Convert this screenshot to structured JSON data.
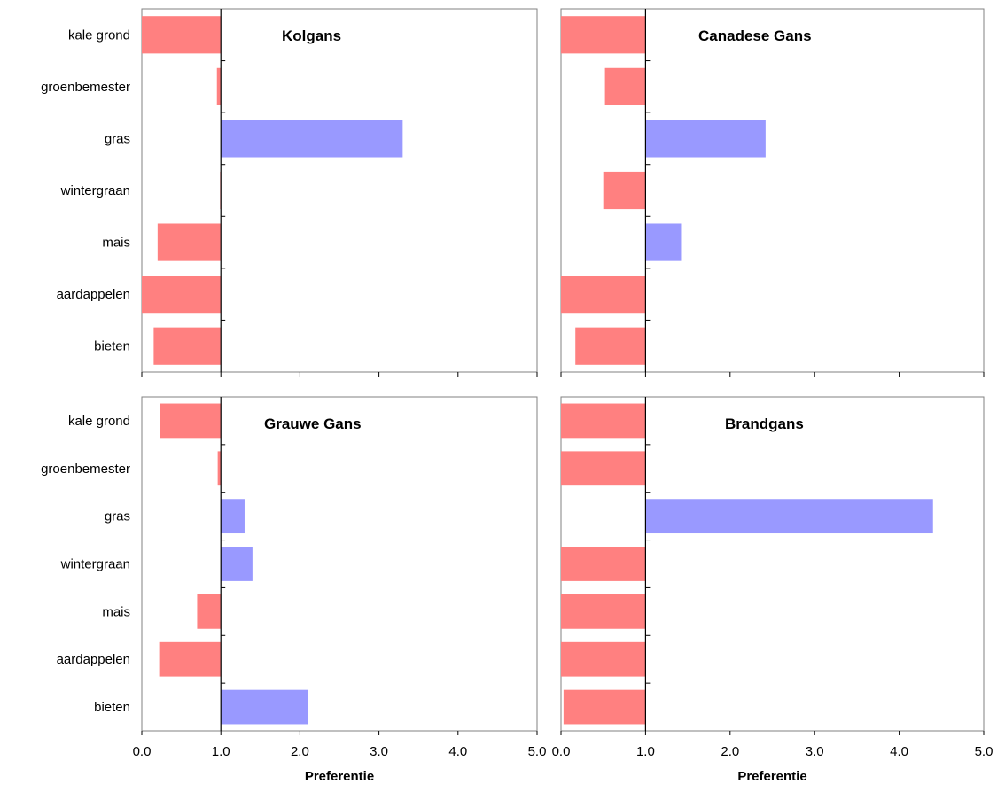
{
  "chart_data": [
    {
      "type": "bar",
      "orientation": "horizontal",
      "title": "Kolgans",
      "categories": [
        "kale grond",
        "groenbemester",
        "gras",
        "wintergraan",
        "mais",
        "aardappelen",
        "bieten"
      ],
      "values": [
        0.0,
        0.95,
        3.3,
        0.99,
        0.2,
        0.0,
        0.15
      ],
      "baseline": 1.0,
      "xlim": [
        0.0,
        5.0
      ],
      "xticks": [
        "0.0",
        "1.0",
        "2.0",
        "3.0",
        "4.0",
        "5.0"
      ],
      "xlabel": "",
      "colors": {
        "above": "#9999ff",
        "below": "#ff8080"
      }
    },
    {
      "type": "bar",
      "orientation": "horizontal",
      "title": "Canadese Gans",
      "categories": [
        "kale grond",
        "groenbemester",
        "gras",
        "wintergraan",
        "mais",
        "aardappelen",
        "bieten"
      ],
      "values": [
        0.0,
        0.52,
        2.42,
        0.5,
        1.42,
        0.0,
        0.17
      ],
      "baseline": 1.0,
      "xlim": [
        0.0,
        5.0
      ],
      "xticks": [
        "0.0",
        "1.0",
        "2.0",
        "3.0",
        "4.0",
        "5.0"
      ],
      "xlabel": "",
      "colors": {
        "above": "#9999ff",
        "below": "#ff8080"
      }
    },
    {
      "type": "bar",
      "orientation": "horizontal",
      "title": "Grauwe Gans",
      "categories": [
        "kale grond",
        "groenbemester",
        "gras",
        "wintergraan",
        "mais",
        "aardappelen",
        "bieten"
      ],
      "values": [
        0.23,
        0.96,
        1.3,
        1.4,
        0.7,
        0.22,
        2.1
      ],
      "baseline": 1.0,
      "xlim": [
        0.0,
        5.0
      ],
      "xticks": [
        "0.0",
        "1.0",
        "2.0",
        "3.0",
        "4.0",
        "5.0"
      ],
      "xlabel": "Preferentie",
      "colors": {
        "above": "#9999ff",
        "below": "#ff8080"
      }
    },
    {
      "type": "bar",
      "orientation": "horizontal",
      "title": "Brandgans",
      "categories": [
        "kale grond",
        "groenbemester",
        "gras",
        "wintergraan",
        "mais",
        "aardappelen",
        "bieten"
      ],
      "values": [
        0.0,
        0.0,
        4.4,
        0.0,
        0.0,
        0.0,
        0.03
      ],
      "baseline": 1.0,
      "xlim": [
        0.0,
        5.0
      ],
      "xticks": [
        "0.0",
        "1.0",
        "2.0",
        "3.0",
        "4.0",
        "5.0"
      ],
      "xlabel": "Preferentie",
      "colors": {
        "above": "#9999ff",
        "below": "#ff8080"
      }
    }
  ]
}
